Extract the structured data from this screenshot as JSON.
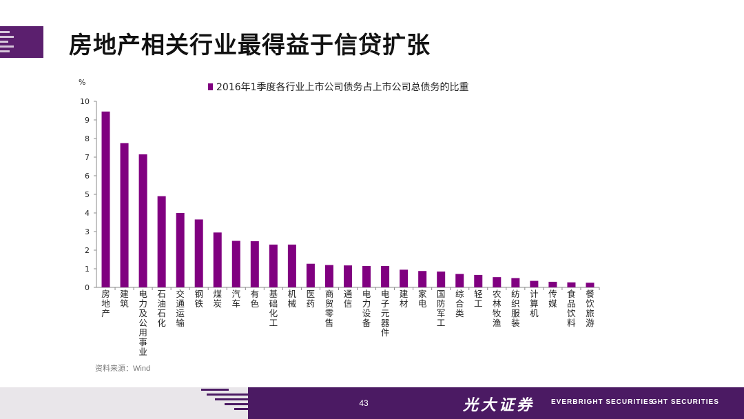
{
  "header": {
    "title": "房地产相关行业最得益于信贷扩张"
  },
  "chart_data": {
    "type": "bar",
    "ylabel": "%",
    "ylim": [
      0,
      10
    ],
    "yticks": [
      0,
      1,
      2,
      3,
      4,
      5,
      6,
      7,
      8,
      9,
      10
    ],
    "legend": "2016年1季度各行业上市公司债务占上市公司总债务的比重",
    "series": [
      {
        "name": "2016年1季度各行业上市公司债务占上市公司总债务的比重",
        "color": "#800080",
        "values": [
          9.45,
          7.75,
          7.15,
          4.9,
          4.0,
          3.65,
          2.95,
          2.5,
          2.48,
          2.3,
          2.3,
          1.27,
          1.2,
          1.18,
          1.15,
          1.15,
          0.95,
          0.88,
          0.85,
          0.72,
          0.67,
          0.55,
          0.5,
          0.35,
          0.3,
          0.27,
          0.25
        ]
      }
    ],
    "categories": [
      "房地产",
      "建筑",
      "电力及公用事业",
      "石油石化",
      "交通运输",
      "钢铁",
      "煤炭",
      "汽车",
      "有色",
      "基础化工",
      "机械",
      "医药",
      "商贸零售",
      "通信",
      "电力设备",
      "电子元器件",
      "建材",
      "家电",
      "国防军工",
      "综合类",
      "轻工",
      "农林牧渔",
      "纺织服装",
      "计算机",
      "传媒",
      "食品饮料",
      "餐饮旅游"
    ]
  },
  "source": "资料来源：Wind",
  "footer": {
    "page_number": "43",
    "brand_cn": "光大证券",
    "brand_en_1": "EVERBRIGHT SECURITIES",
    "brand_en_2": "GHT SECURITIES"
  }
}
